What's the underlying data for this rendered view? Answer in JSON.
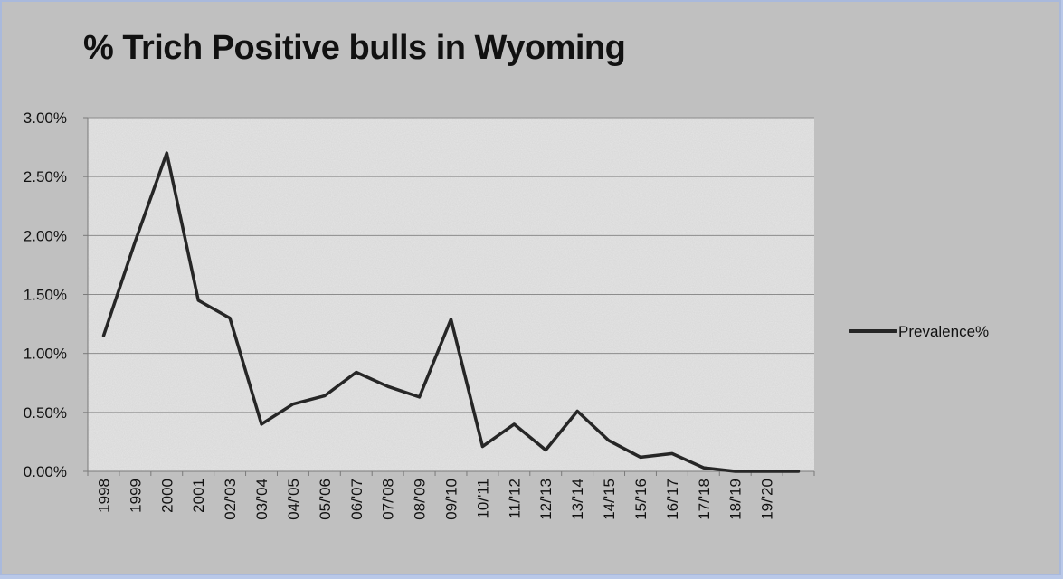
{
  "chart_data": {
    "type": "line",
    "title": "% Trich Positive bulls in Wyoming",
    "xlabel": "",
    "ylabel": "",
    "ylim": [
      0,
      0.03
    ],
    "yticks": [
      "0.00%",
      "0.50%",
      "1.00%",
      "1.50%",
      "2.00%",
      "2.50%",
      "3.00%"
    ],
    "categories": [
      "1998",
      "1999",
      "2000",
      "2001",
      "02/'03",
      "03/'04",
      "04/'05",
      "05/'06",
      "06/'07",
      "07/'08",
      "08/'09",
      "09/'10",
      "10/'11",
      "11/'12",
      "12/'13",
      "13/'14",
      "14/'15",
      "15/'16",
      "16/'17",
      "17/'18",
      "18/'19",
      "19/'20",
      ""
    ],
    "series": [
      {
        "name": "Prevalence%",
        "color": "#262626",
        "values": [
          0.0115,
          0.0195,
          0.027,
          0.0145,
          0.013,
          0.004,
          0.0057,
          0.0064,
          0.0084,
          0.0072,
          0.0063,
          0.0129,
          0.0021,
          0.004,
          0.0018,
          0.0051,
          0.0026,
          0.0012,
          0.0015,
          0.0003,
          0.0,
          0.0,
          0.0
        ]
      }
    ],
    "grid": true,
    "legend": "right",
    "plot_background": "#e6e6e6"
  }
}
